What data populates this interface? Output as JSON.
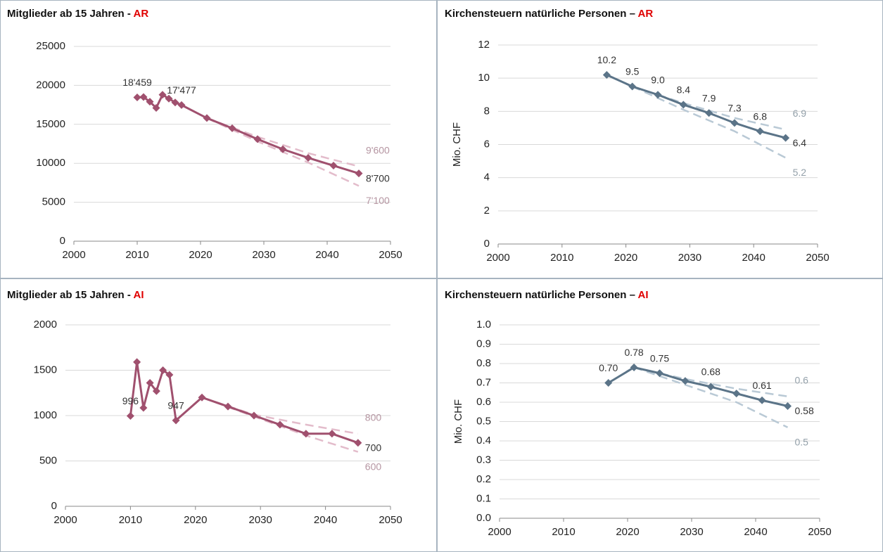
{
  "chart_data": [
    {
      "type": "line",
      "title": "Mitglieder ab 15 Jahren -",
      "title_region": "AR",
      "xlim": [
        2000,
        2050
      ],
      "xticks": [
        2000,
        2010,
        2020,
        2030,
        2040,
        2050
      ],
      "ylim": [
        0,
        25000
      ],
      "yticks": [
        0,
        5000,
        10000,
        15000,
        20000,
        25000
      ],
      "grid": true,
      "series": [
        {
          "color": "#a0506e",
          "dash": false,
          "x": [
            2010,
            2011,
            2012,
            2013,
            2014,
            2015,
            2016,
            2017,
            2021,
            2025,
            2029,
            2033,
            2037,
            2041,
            2045
          ],
          "values": [
            18459,
            18500,
            17900,
            17100,
            18800,
            18300,
            17800,
            17477,
            15800,
            14500,
            13100,
            11800,
            10700,
            9700,
            8700
          ],
          "value_labels": [
            "18'459",
            null,
            null,
            null,
            null,
            null,
            null,
            "17'477",
            null,
            null,
            null,
            null,
            null,
            null,
            "8'700"
          ]
        },
        {
          "color": "#e3bccb",
          "dash": true,
          "x": [
            2021,
            2029,
            2037,
            2045
          ],
          "values": [
            15800,
            13400,
            11300,
            9600
          ],
          "value_labels": [
            null,
            null,
            null,
            "9'600"
          ]
        },
        {
          "color": "#e3bccb",
          "dash": true,
          "x": [
            2021,
            2029,
            2037,
            2045
          ],
          "values": [
            15800,
            12800,
            10100,
            7100
          ],
          "value_labels": [
            null,
            null,
            null,
            "7'100"
          ]
        }
      ]
    },
    {
      "type": "line",
      "title": "Kirchensteuern natürliche Personen –",
      "title_region": "AR",
      "ylabel": "Mio. CHF",
      "xlim": [
        2000,
        2050
      ],
      "xticks": [
        2000,
        2010,
        2020,
        2030,
        2040,
        2050
      ],
      "ylim": [
        0,
        12
      ],
      "yticks": [
        0,
        2,
        4,
        6,
        8,
        10,
        12
      ],
      "grid": true,
      "series": [
        {
          "color": "#5b7488",
          "dash": false,
          "x": [
            2017,
            2021,
            2025,
            2029,
            2033,
            2037,
            2041,
            2045
          ],
          "values": [
            10.2,
            9.5,
            9.0,
            8.4,
            7.9,
            7.3,
            6.8,
            6.4
          ],
          "value_labels": [
            "10.2",
            "9.5",
            "9.0",
            "8.4",
            "7.9",
            "7.3",
            "6.8",
            "6.4"
          ]
        },
        {
          "color": "#b9c9d5",
          "dash": true,
          "x": [
            2021,
            2029,
            2037,
            2045
          ],
          "values": [
            9.5,
            8.5,
            7.6,
            6.9
          ],
          "value_labels": [
            null,
            null,
            null,
            "6.9"
          ]
        },
        {
          "color": "#b9c9d5",
          "dash": true,
          "x": [
            2021,
            2029,
            2037,
            2045
          ],
          "values": [
            9.5,
            8.1,
            6.8,
            5.2
          ],
          "value_labels": [
            null,
            null,
            null,
            "5.2"
          ]
        }
      ]
    },
    {
      "type": "line",
      "title": "Mitglieder ab 15 Jahren -",
      "title_region": "AI",
      "xlim": [
        2000,
        2050
      ],
      "xticks": [
        2000,
        2010,
        2020,
        2030,
        2040,
        2050
      ],
      "ylim": [
        0,
        2000
      ],
      "yticks": [
        0,
        500,
        1000,
        1500,
        2000
      ],
      "grid": true,
      "series": [
        {
          "color": "#a0506e",
          "dash": false,
          "x": [
            2010,
            2011,
            2012,
            2013,
            2014,
            2015,
            2016,
            2017,
            2021,
            2025,
            2029,
            2033,
            2037,
            2041,
            2045
          ],
          "values": [
            996,
            1590,
            1085,
            1360,
            1270,
            1500,
            1450,
            947,
            1200,
            1100,
            1000,
            900,
            800,
            800,
            700
          ],
          "value_labels": [
            "996",
            null,
            null,
            null,
            null,
            null,
            null,
            "947",
            null,
            null,
            null,
            null,
            null,
            null,
            "700"
          ]
        },
        {
          "color": "#e3bccb",
          "dash": true,
          "x": [
            2021,
            2029,
            2037,
            2045
          ],
          "values": [
            1200,
            1010,
            900,
            800
          ],
          "value_labels": [
            null,
            null,
            null,
            "800"
          ]
        },
        {
          "color": "#e3bccb",
          "dash": true,
          "x": [
            2021,
            2029,
            2037,
            2045
          ],
          "values": [
            1200,
            990,
            780,
            600
          ],
          "value_labels": [
            null,
            null,
            null,
            "600"
          ]
        }
      ]
    },
    {
      "type": "line",
      "title": "Kirchensteuern natürliche Personen –",
      "title_region": "AI",
      "ylabel": "Mio. CHF",
      "xlim": [
        2000,
        2050
      ],
      "xticks": [
        2000,
        2010,
        2020,
        2030,
        2040,
        2050
      ],
      "ylim": [
        0,
        1
      ],
      "yticks": [
        {
          "value": 0,
          "label": "0.0"
        },
        0.1,
        0.2,
        0.3,
        0.4,
        0.5,
        0.6,
        0.7,
        0.8,
        0.9,
        {
          "value": 1,
          "label": "1.0"
        }
      ],
      "grid": true,
      "series": [
        {
          "color": "#5b7488",
          "dash": false,
          "x": [
            2017,
            2021,
            2025,
            2029,
            2033,
            2037,
            2041,
            2045
          ],
          "values": [
            0.7,
            0.78,
            0.75,
            0.71,
            0.68,
            0.645,
            0.61,
            0.58
          ],
          "value_labels": [
            "0.70",
            "0.78",
            "0.75",
            null,
            "0.68",
            null,
            "0.61",
            "0.58"
          ]
        },
        {
          "color": "#b9c9d5",
          "dash": true,
          "x": [
            2021,
            2029,
            2037,
            2045
          ],
          "values": [
            0.78,
            0.72,
            0.67,
            0.63
          ],
          "value_labels": [
            null,
            null,
            null,
            "0.6"
          ]
        },
        {
          "color": "#b9c9d5",
          "dash": true,
          "x": [
            2021,
            2029,
            2037,
            2045
          ],
          "values": [
            0.78,
            0.69,
            0.6,
            0.47
          ],
          "value_labels": [
            null,
            null,
            null,
            "0.5"
          ]
        }
      ]
    }
  ]
}
